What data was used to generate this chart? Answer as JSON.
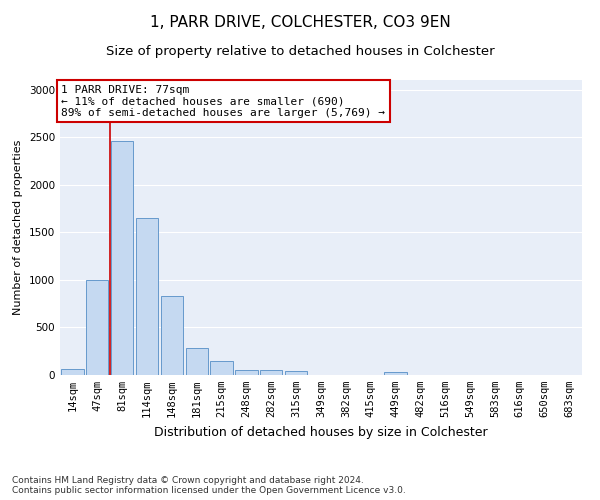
{
  "title": "1, PARR DRIVE, COLCHESTER, CO3 9EN",
  "subtitle": "Size of property relative to detached houses in Colchester",
  "xlabel": "Distribution of detached houses by size in Colchester",
  "ylabel": "Number of detached properties",
  "bar_labels": [
    "14sqm",
    "47sqm",
    "81sqm",
    "114sqm",
    "148sqm",
    "181sqm",
    "215sqm",
    "248sqm",
    "282sqm",
    "315sqm",
    "349sqm",
    "382sqm",
    "415sqm",
    "449sqm",
    "482sqm",
    "516sqm",
    "549sqm",
    "583sqm",
    "616sqm",
    "650sqm",
    "683sqm"
  ],
  "bar_values": [
    60,
    1000,
    2460,
    1650,
    830,
    280,
    145,
    50,
    50,
    40,
    0,
    0,
    0,
    30,
    0,
    0,
    0,
    0,
    0,
    0,
    0
  ],
  "bar_color": "#c5d9f1",
  "bar_edge_color": "#6699cc",
  "background_color": "#ffffff",
  "plot_bg_color": "#e8eef8",
  "grid_color": "#ffffff",
  "vline_color": "#cc0000",
  "annotation_text": "1 PARR DRIVE: 77sqm\n← 11% of detached houses are smaller (690)\n89% of semi-detached houses are larger (5,769) →",
  "annotation_box_color": "#ffffff",
  "annotation_box_edge": "#cc0000",
  "ylim": [
    0,
    3100
  ],
  "yticks": [
    0,
    500,
    1000,
    1500,
    2000,
    2500,
    3000
  ],
  "footnote": "Contains HM Land Registry data © Crown copyright and database right 2024.\nContains public sector information licensed under the Open Government Licence v3.0.",
  "title_fontsize": 11,
  "subtitle_fontsize": 9.5,
  "xlabel_fontsize": 9,
  "ylabel_fontsize": 8,
  "tick_fontsize": 7.5,
  "annotation_fontsize": 8,
  "footnote_fontsize": 6.5
}
